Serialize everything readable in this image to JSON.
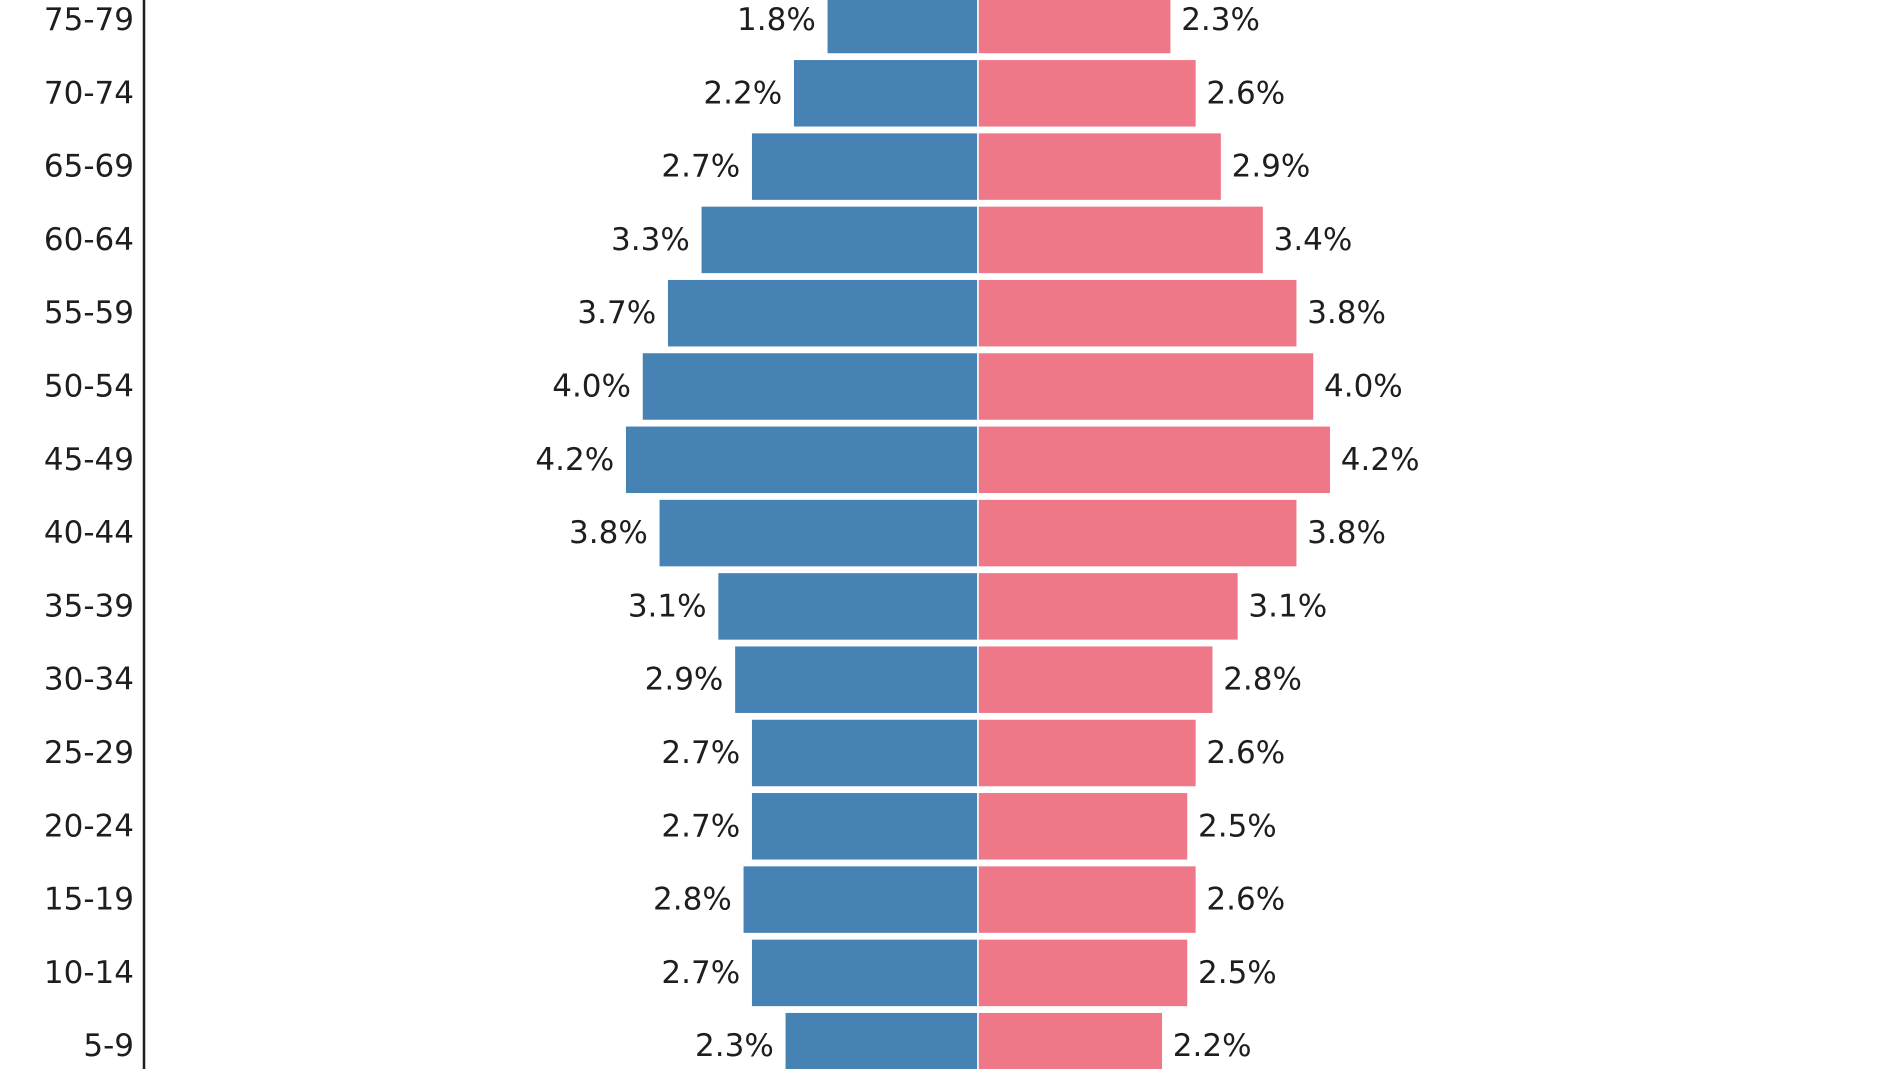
{
  "chart_data": {
    "type": "bar",
    "orientation": "horizontal-diverging",
    "title": "",
    "xlabel": "",
    "ylabel": "",
    "categories": [
      "75-79",
      "70-74",
      "65-69",
      "60-64",
      "55-59",
      "50-54",
      "45-49",
      "40-44",
      "35-39",
      "30-34",
      "25-29",
      "20-24",
      "15-19",
      "10-14",
      "5-9"
    ],
    "series": [
      {
        "name": "left",
        "color": "#4682b4",
        "values": [
          1.8,
          2.2,
          2.7,
          3.3,
          3.7,
          4.0,
          4.2,
          3.8,
          3.1,
          2.9,
          2.7,
          2.7,
          2.8,
          2.7,
          2.3
        ],
        "labels": [
          "1.8%",
          "2.2%",
          "2.7%",
          "3.3%",
          "3.7%",
          "4.0%",
          "4.2%",
          "3.8%",
          "3.1%",
          "2.9%",
          "2.7%",
          "2.7%",
          "2.8%",
          "2.7%",
          "2.3%"
        ]
      },
      {
        "name": "right",
        "color": "#ef7888",
        "values": [
          2.3,
          2.6,
          2.9,
          3.4,
          3.8,
          4.0,
          4.2,
          3.8,
          3.1,
          2.8,
          2.6,
          2.5,
          2.6,
          2.5,
          2.2
        ],
        "labels": [
          "2.3%",
          "2.6%",
          "2.9%",
          "3.4%",
          "3.8%",
          "4.0%",
          "4.2%",
          "3.8%",
          "3.1%",
          "2.8%",
          "2.6%",
          "2.5%",
          "2.6%",
          "2.5%",
          "2.2%"
        ]
      }
    ],
    "grid": false,
    "legend": "none"
  }
}
